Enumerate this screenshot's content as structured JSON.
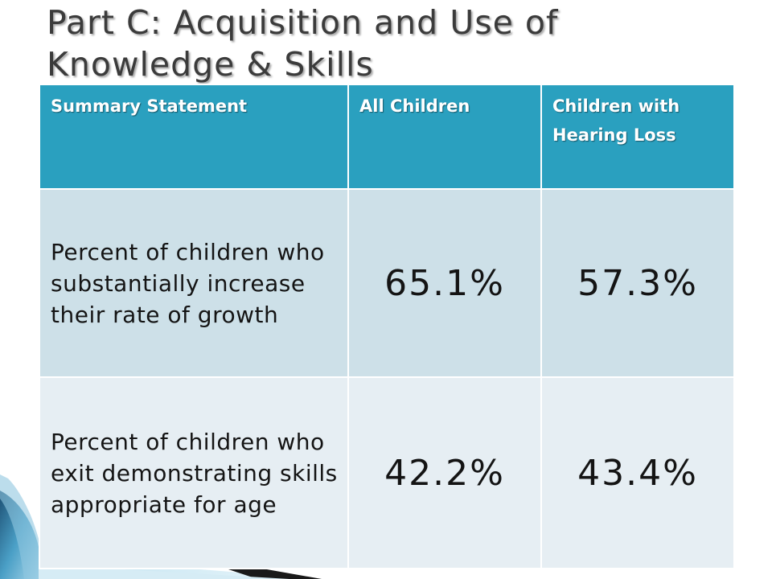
{
  "slide": {
    "title_line1": "Part C:  Acquisition and Use of",
    "title_line2": "Knowledge & Skills"
  },
  "table": {
    "headers": [
      "Summary Statement",
      "All Children",
      "Children with Hearing Loss"
    ],
    "rows": [
      {
        "statement": "Percent of children who substantially increase their rate of growth",
        "all_children": "65.1%",
        "hearing_loss": "57.3%"
      },
      {
        "statement": "Percent of children who exit demonstrating skills appropriate for age",
        "all_children": "42.2%",
        "hearing_loss": "43.4%"
      }
    ]
  },
  "colors": {
    "header_bg": "#2aa0bf",
    "row1_bg": "#cde0e8",
    "row2_bg": "#e6eef3",
    "title_text": "#3b3b3b"
  }
}
